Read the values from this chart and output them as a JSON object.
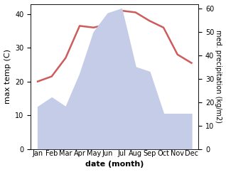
{
  "months": [
    "Jan",
    "Feb",
    "Mar",
    "Apr",
    "May",
    "Jun",
    "Jul",
    "Aug",
    "Sep",
    "Oct",
    "Nov",
    "Dec"
  ],
  "month_positions": [
    1,
    2,
    3,
    4,
    5,
    6,
    7,
    8,
    9,
    10,
    11,
    12
  ],
  "temperature": [
    20,
    21.5,
    27,
    36.5,
    36,
    37,
    41,
    40.5,
    38,
    36,
    28,
    25.5
  ],
  "precipitation": [
    18,
    22,
    18,
    32,
    50,
    58,
    60,
    35,
    33,
    15,
    15,
    15
  ],
  "temp_color": "#cd5c5c",
  "precip_fill_color": "#c5cce8",
  "temp_ylim": [
    0,
    43
  ],
  "precip_ylim": [
    0,
    62
  ],
  "temp_yticks": [
    0,
    10,
    20,
    30,
    40
  ],
  "precip_yticks": [
    0,
    10,
    20,
    30,
    40,
    50,
    60
  ],
  "xlabel": "date (month)",
  "ylabel_left": "max temp (C)",
  "ylabel_right": "med. precipitation (kg/m2)",
  "bg_color": "#ffffff",
  "figsize": [
    3.18,
    2.42
  ],
  "dpi": 100
}
